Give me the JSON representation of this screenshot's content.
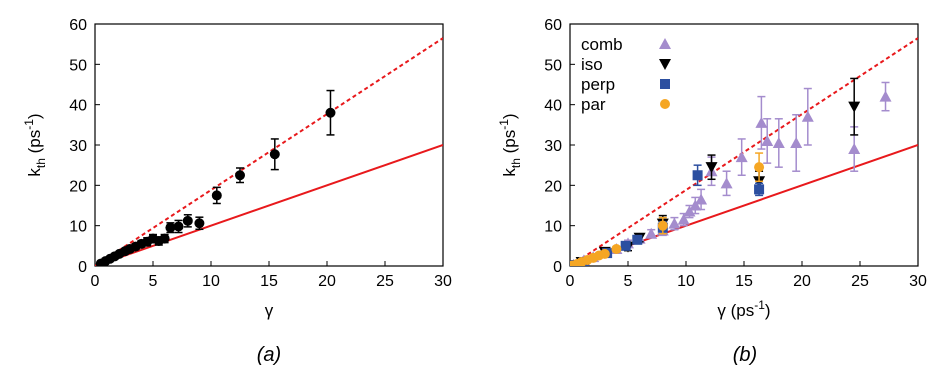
{
  "chart_data": [
    {
      "type": "scatter",
      "caption": "(a)",
      "xlabel": "γ",
      "ylabel": "k",
      "ylabel_sub": "th",
      "ylabel_unit": " (ps",
      "ylabel_exp": "-1",
      "ylabel_close": ")",
      "xlim": [
        0,
        30
      ],
      "ylim": [
        0,
        60
      ],
      "xticks": [
        0,
        5,
        10,
        15,
        20,
        25,
        30
      ],
      "yticks": [
        0,
        10,
        20,
        30,
        40,
        50,
        60
      ],
      "grid": false,
      "lines": [
        {
          "style": "solid",
          "color": "#e8191c",
          "x": [
            0,
            30
          ],
          "y": [
            0,
            30
          ]
        },
        {
          "style": "dashed",
          "color": "#e8191c",
          "x": [
            0,
            30
          ],
          "y": [
            0,
            56.5
          ]
        }
      ],
      "series": [
        {
          "color": "#000000",
          "marker": "circle",
          "points": [
            {
              "x": 0.5,
              "y": 0.6,
              "err": 0.2
            },
            {
              "x": 0.9,
              "y": 1.2,
              "err": 0.3
            },
            {
              "x": 1.3,
              "y": 1.8,
              "err": 0.3
            },
            {
              "x": 1.7,
              "y": 2.4,
              "err": 0.4
            },
            {
              "x": 2.1,
              "y": 3.0,
              "err": 0.5
            },
            {
              "x": 2.6,
              "y": 3.7,
              "err": 0.5
            },
            {
              "x": 3.0,
              "y": 4.2,
              "err": 0.6
            },
            {
              "x": 3.5,
              "y": 4.8,
              "err": 0.7
            },
            {
              "x": 4.0,
              "y": 5.5,
              "err": 0.8
            },
            {
              "x": 4.5,
              "y": 6.0,
              "err": 1.0
            },
            {
              "x": 5.0,
              "y": 6.8,
              "err": 1.0
            },
            {
              "x": 5.5,
              "y": 6.2,
              "err": 1.0
            },
            {
              "x": 6.0,
              "y": 6.8,
              "err": 1.0
            },
            {
              "x": 6.5,
              "y": 9.5,
              "err": 1.2
            },
            {
              "x": 7.2,
              "y": 9.8,
              "err": 1.5
            },
            {
              "x": 8.0,
              "y": 11.2,
              "err": 1.5
            },
            {
              "x": 9.0,
              "y": 10.6,
              "err": 1.5
            },
            {
              "x": 10.5,
              "y": 17.5,
              "err": 2.0
            },
            {
              "x": 12.5,
              "y": 22.5,
              "err": 1.8
            },
            {
              "x": 15.5,
              "y": 27.7,
              "err": 3.8
            },
            {
              "x": 20.3,
              "y": 38.0,
              "err": 5.5
            }
          ]
        }
      ]
    },
    {
      "type": "scatter",
      "caption": "(b)",
      "xlabel": "γ (ps",
      "xlabel_exp": "-1",
      "xlabel_close": ")",
      "ylabel": "k",
      "ylabel_sub": "th",
      "ylabel_unit": " (ps",
      "ylabel_exp": "-1",
      "ylabel_close": ")",
      "xlim": [
        0,
        30
      ],
      "ylim": [
        0,
        60
      ],
      "xticks": [
        0,
        5,
        10,
        15,
        20,
        25,
        30
      ],
      "yticks": [
        0,
        10,
        20,
        30,
        40,
        50,
        60
      ],
      "grid": false,
      "legend_position": "top-left",
      "lines": [
        {
          "style": "solid",
          "color": "#e8191c",
          "x": [
            0,
            30
          ],
          "y": [
            0,
            30
          ]
        },
        {
          "style": "dashed",
          "color": "#e8191c",
          "x": [
            0,
            30
          ],
          "y": [
            0,
            56.5
          ]
        }
      ],
      "series": [
        {
          "name": "comb",
          "color": "#a48ccd",
          "marker": "triangle-up",
          "points": [
            {
              "x": 0.3,
              "y": 0.3,
              "err": 0.2
            },
            {
              "x": 0.7,
              "y": 0.8,
              "err": 0.3
            },
            {
              "x": 1.2,
              "y": 1.4,
              "err": 0.3
            },
            {
              "x": 2.0,
              "y": 2.2,
              "err": 0.4
            },
            {
              "x": 3.0,
              "y": 3.3,
              "err": 0.5
            },
            {
              "x": 4.0,
              "y": 4.2,
              "err": 0.6
            },
            {
              "x": 5.0,
              "y": 5.6,
              "err": 0.8
            },
            {
              "x": 6.0,
              "y": 6.8,
              "err": 1.0
            },
            {
              "x": 7.0,
              "y": 8.0,
              "err": 1.0
            },
            {
              "x": 8.0,
              "y": 8.8,
              "err": 1.2
            },
            {
              "x": 9.0,
              "y": 10.5,
              "err": 1.5
            },
            {
              "x": 9.8,
              "y": 11.5,
              "err": 1.5
            },
            {
              "x": 10.3,
              "y": 13.5,
              "err": 1.5
            },
            {
              "x": 10.8,
              "y": 15.0,
              "err": 2.0
            },
            {
              "x": 11.3,
              "y": 16.5,
              "err": 2.5
            },
            {
              "x": 12.2,
              "y": 23.5,
              "err": 3.5
            },
            {
              "x": 13.5,
              "y": 20.5,
              "err": 3.0
            },
            {
              "x": 14.8,
              "y": 27.0,
              "err": 4.5
            },
            {
              "x": 16.5,
              "y": 35.5,
              "err": 6.5
            },
            {
              "x": 17.0,
              "y": 31.0,
              "err": 5.5
            },
            {
              "x": 18.0,
              "y": 30.5,
              "err": 6.0
            },
            {
              "x": 19.5,
              "y": 30.5,
              "err": 7.0
            },
            {
              "x": 20.5,
              "y": 37.0,
              "err": 7.0
            },
            {
              "x": 24.5,
              "y": 29.0,
              "err": 5.5
            },
            {
              "x": 27.2,
              "y": 42.0,
              "err": 3.5
            }
          ]
        },
        {
          "name": "iso",
          "color": "#000000",
          "marker": "triangle-down",
          "points": [
            {
              "x": 0.3,
              "y": 0.2,
              "err": 0.2
            },
            {
              "x": 1.0,
              "y": 1.0,
              "err": 0.3
            },
            {
              "x": 3.0,
              "y": 3.5,
              "err": 0.6
            },
            {
              "x": 5.0,
              "y": 4.8,
              "err": 1.0
            },
            {
              "x": 6.0,
              "y": 7.0,
              "err": 1.0
            },
            {
              "x": 8.0,
              "y": 10.5,
              "err": 2.0
            },
            {
              "x": 12.2,
              "y": 24.5,
              "err": 3.0
            },
            {
              "x": 16.3,
              "y": 21.0,
              "err": 2.5
            },
            {
              "x": 24.5,
              "y": 39.5,
              "err": 7.0
            }
          ]
        },
        {
          "name": "perp",
          "color": "#2c4fa0",
          "marker": "square",
          "points": [
            {
              "x": 0.3,
              "y": 0.2,
              "err": 0.2
            },
            {
              "x": 1.2,
              "y": 1.0,
              "err": 0.3
            },
            {
              "x": 3.2,
              "y": 3.2,
              "err": 0.5
            },
            {
              "x": 4.8,
              "y": 5.0,
              "err": 0.8
            },
            {
              "x": 5.8,
              "y": 6.5,
              "err": 1.0
            },
            {
              "x": 8.0,
              "y": 9.5,
              "err": 1.5
            },
            {
              "x": 11.0,
              "y": 22.5,
              "err": 2.5
            },
            {
              "x": 16.3,
              "y": 19.0,
              "err": 1.5
            }
          ]
        },
        {
          "name": "par",
          "color": "#f5a623",
          "marker": "circle",
          "points": [
            {
              "x": 0.2,
              "y": 0.1,
              "err": 0.1
            },
            {
              "x": 0.6,
              "y": 0.5,
              "err": 0.2
            },
            {
              "x": 1.0,
              "y": 1.0,
              "err": 0.3
            },
            {
              "x": 1.5,
              "y": 1.5,
              "err": 0.3
            },
            {
              "x": 2.0,
              "y": 2.0,
              "err": 0.4
            },
            {
              "x": 2.5,
              "y": 2.6,
              "err": 0.4
            },
            {
              "x": 3.0,
              "y": 3.0,
              "err": 0.5
            },
            {
              "x": 4.0,
              "y": 4.2,
              "err": 0.6
            },
            {
              "x": 8.0,
              "y": 10.0,
              "err": 2.0
            },
            {
              "x": 16.3,
              "y": 24.5,
              "err": 3.5
            }
          ]
        }
      ]
    }
  ]
}
